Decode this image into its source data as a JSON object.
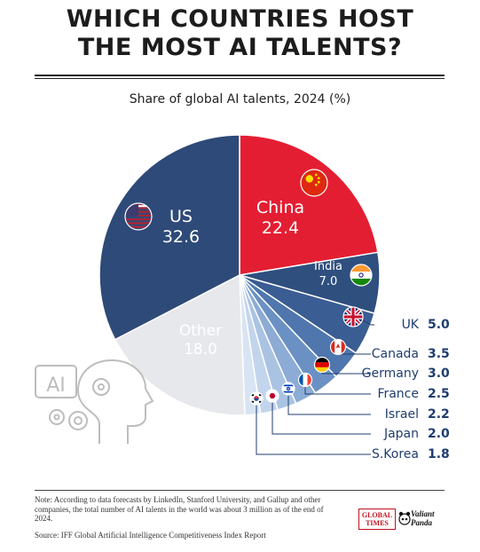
{
  "header": {
    "title_line1": "WHICH COUNTRIES HOST",
    "title_line2": "THE MOST AI TALENTS?",
    "subtitle": "Share of global AI talents, 2024 (%)"
  },
  "chart_data": {
    "type": "pie",
    "title": "WHICH COUNTRIES HOST THE MOST AI TALENTS?",
    "subtitle": "Share of global AI talents, 2024 (%)",
    "slices": [
      {
        "label": "China",
        "value": 22.4,
        "display": "22.4",
        "color": "#e41e32",
        "flag": "china-flag-icon"
      },
      {
        "label": "India",
        "value": 7.0,
        "display": "7.0",
        "color": "#2f4f7f",
        "flag": "india-flag-icon"
      },
      {
        "label": "UK",
        "value": 5.0,
        "display": "5.0",
        "color": "#3a5d93",
        "flag": "uk-flag-icon"
      },
      {
        "label": "Canada",
        "value": 3.5,
        "display": "3.5",
        "color": "#4f76ad",
        "flag": "canada-flag-icon"
      },
      {
        "label": "Germany",
        "value": 3.0,
        "display": "3.0",
        "color": "#6b91c4",
        "flag": "germany-flag-icon"
      },
      {
        "label": "France",
        "value": 2.5,
        "display": "2.5",
        "color": "#8cabd5",
        "flag": "france-flag-icon"
      },
      {
        "label": "Israel",
        "value": 2.2,
        "display": "2.2",
        "color": "#aac3e3",
        "flag": "israel-flag-icon"
      },
      {
        "label": "Japan",
        "value": 2.0,
        "display": "2.0",
        "color": "#c3d5ec",
        "flag": "japan-flag-icon"
      },
      {
        "label": "S.Korea",
        "value": 1.8,
        "display": "1.8",
        "color": "#d8e4f3",
        "flag": "south-korea-flag-icon"
      },
      {
        "label": "Other",
        "value": 18.0,
        "display": "18.0",
        "color": "#e6e8ec"
      },
      {
        "label": "US",
        "value": 32.6,
        "display": "32.6",
        "color": "#2e4a78",
        "flag": "us-flag-icon"
      }
    ],
    "label_colors": {
      "inside": "#ffffff",
      "callout_label": "#1f3d6e",
      "callout_value": "#1f3d6e"
    }
  },
  "decor": {
    "icon": "ai-head-gears-icon",
    "icon_text": "AI"
  },
  "footer": {
    "note": "Note: According to data forecasts by LinkedIn, Stanford University, and Gallup and other companies, the total number of AI talents in the world was about 3 million as of the end of 2024.",
    "source": "Source: IFF Global Artificial Intelligence Competitiveness Index Report",
    "logo_global_times_line1": "GLOBAL",
    "logo_global_times_line2": "TIMES",
    "logo_vp_line1": "Valiant",
    "logo_vp_line2": "Panda"
  }
}
